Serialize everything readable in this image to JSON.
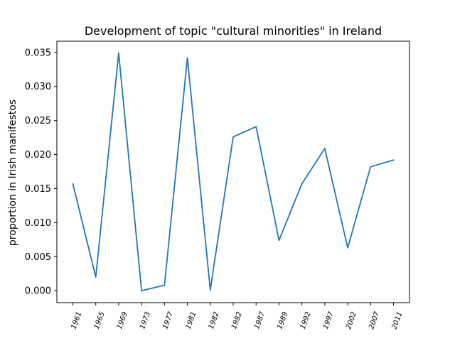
{
  "chart_data": {
    "type": "line",
    "title": "Development of topic \"cultural minorities\" in Ireland",
    "xlabel": "",
    "ylabel": "proportion in Irish manifestos",
    "categories": [
      "1961",
      "1965",
      "1969",
      "1973",
      "1977",
      "1981",
      "1982",
      "1982",
      "1987",
      "1989",
      "1992",
      "1997",
      "2002",
      "2007",
      "2011"
    ],
    "series": [
      {
        "values": [
          0.0157,
          0.002,
          0.0349,
          0.0,
          0.0008,
          0.0342,
          0.0001,
          0.0226,
          0.0241,
          0.0074,
          0.0157,
          0.0209,
          0.0063,
          0.0182,
          0.0192
        ],
        "color": "#1f77b4"
      }
    ],
    "ylim": [
      -0.00175,
      0.03665
    ],
    "yticks": [
      0.0,
      0.005,
      0.01,
      0.015,
      0.02,
      0.025,
      0.03,
      0.035
    ],
    "ytick_labels": [
      "0.000",
      "0.005",
      "0.010",
      "0.015",
      "0.020",
      "0.025",
      "0.030",
      "0.035"
    ],
    "grid": false,
    "legend": false
  }
}
